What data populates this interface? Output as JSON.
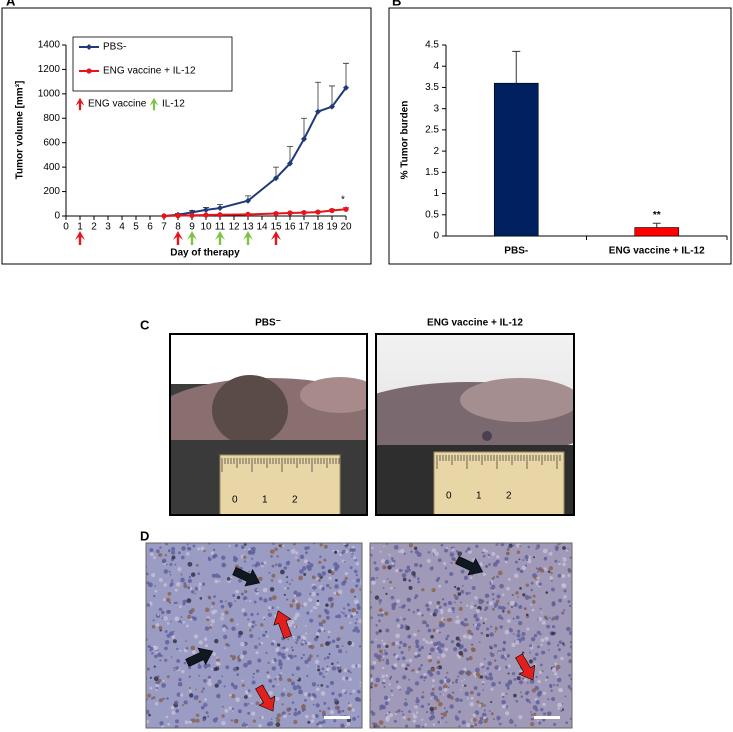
{
  "chart_data": [
    {
      "type": "line",
      "panel_label": "A",
      "xlabel": "Day of therapy",
      "ylabel": "Tumor volume [mm³]",
      "x": [
        7,
        8,
        9,
        10,
        11,
        13,
        15,
        16,
        17,
        18,
        19,
        20
      ],
      "series": [
        {
          "name": "PBS-",
          "color": "#1f3a7a",
          "values": [
            0,
            10,
            30,
            50,
            65,
            125,
            310,
            430,
            630,
            855,
            895,
            1050
          ],
          "errors": [
            0,
            10,
            15,
            20,
            30,
            40,
            90,
            140,
            170,
            240,
            170,
            200
          ]
        },
        {
          "name": "ENG vaccine + IL-12",
          "color": "#e8141c",
          "values": [
            0,
            3,
            5,
            8,
            10,
            13,
            20,
            25,
            28,
            32,
            45,
            55
          ],
          "errors": [
            0,
            2,
            3,
            3,
            4,
            4,
            6,
            6,
            7,
            8,
            10,
            12
          ]
        }
      ],
      "arrow_legend": [
        {
          "name": "ENG vaccine",
          "color": "#e8141c",
          "days": [
            1,
            8,
            15
          ]
        },
        {
          "name": "IL-12",
          "color": "#7dc242",
          "days": [
            9,
            11,
            13
          ]
        }
      ],
      "annotation": "*",
      "xlim": [
        0,
        20
      ],
      "xticks": [
        0,
        1,
        2,
        3,
        4,
        5,
        6,
        7,
        8,
        9,
        10,
        11,
        12,
        13,
        14,
        15,
        16,
        17,
        18,
        19,
        20
      ],
      "ylim": [
        0,
        1400
      ],
      "yticks": [
        0,
        200,
        400,
        600,
        800,
        1000,
        1200,
        1400
      ]
    },
    {
      "type": "bar",
      "panel_label": "B",
      "ylabel": "% Tumor burden",
      "categories": [
        "PBS-",
        "ENG vaccine + IL-12"
      ],
      "values": [
        3.6,
        0.2
      ],
      "errors": [
        0.75,
        0.1
      ],
      "colors": [
        "#002060",
        "#ff0000"
      ],
      "annotation": "**",
      "ylim": [
        0,
        4.5
      ],
      "yticks": [
        0,
        0.5,
        1,
        1.5,
        2,
        2.5,
        3,
        3.5,
        4,
        4.5
      ]
    }
  ],
  "panel_c": {
    "label": "C",
    "titles": [
      "PBS⁻",
      "ENG vaccine + IL-12"
    ],
    "ruler_labels": [
      "0",
      "1",
      "2"
    ]
  },
  "panel_d": {
    "label": "D"
  }
}
